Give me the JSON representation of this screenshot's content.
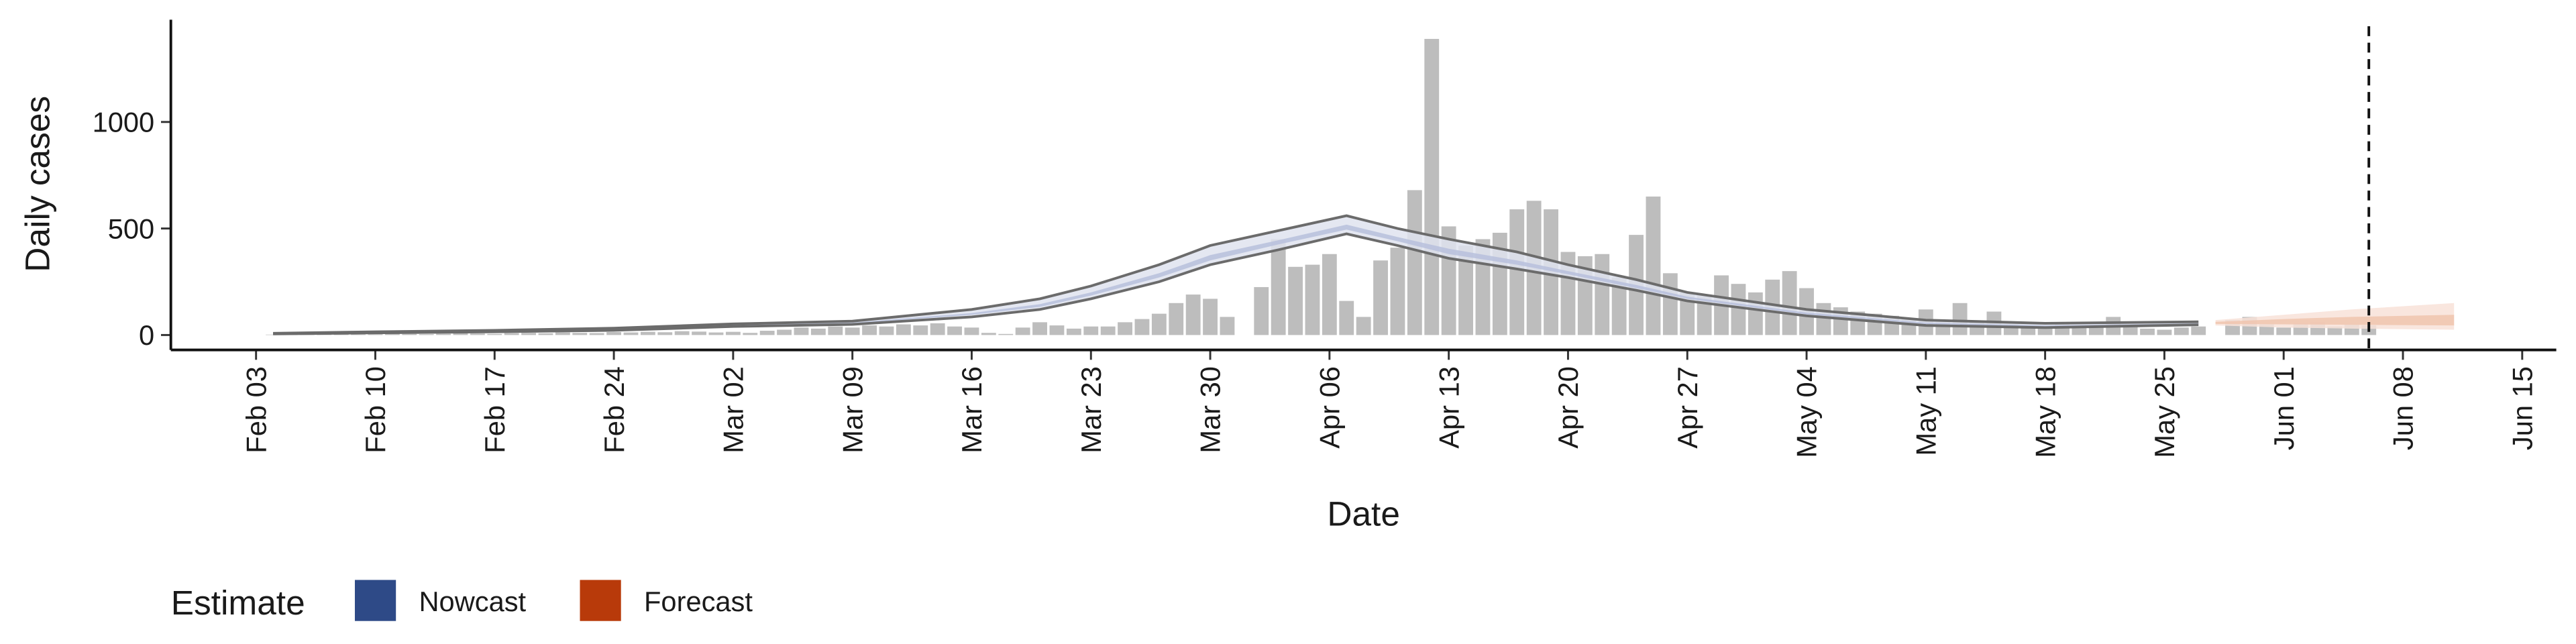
{
  "chart_data": {
    "type": "bar",
    "x_label": "Date",
    "y_label": "Daily cases",
    "legend_title": "Estimate",
    "xlim": [
      "Jan 29",
      "Jun 17"
    ],
    "xticks": [
      "Feb 03",
      "Feb 10",
      "Feb 17",
      "Feb 24",
      "Mar 02",
      "Mar 09",
      "Mar 16",
      "Mar 23",
      "Mar 30",
      "Apr 06",
      "Apr 13",
      "Apr 20",
      "Apr 27",
      "May 04",
      "May 11",
      "May 18",
      "May 25",
      "Jun 01",
      "Jun 08",
      "Jun 15"
    ],
    "ylim": [
      -70,
      1480
    ],
    "yticks": [
      0,
      500,
      1000
    ],
    "vline": "Jun 06",
    "bars": {
      "color": "#bdbdbd",
      "x": [
        "Feb 04",
        "Feb 05",
        "Feb 06",
        "Feb 07",
        "Feb 08",
        "Feb 09",
        "Feb 10",
        "Feb 11",
        "Feb 12",
        "Feb 13",
        "Feb 14",
        "Feb 15",
        "Feb 16",
        "Feb 17",
        "Feb 18",
        "Feb 19",
        "Feb 20",
        "Feb 21",
        "Feb 22",
        "Feb 23",
        "Feb 24",
        "Feb 25",
        "Feb 26",
        "Feb 27",
        "Feb 28",
        "Feb 29",
        "Mar 01",
        "Mar 02",
        "Mar 03",
        "Mar 04",
        "Mar 05",
        "Mar 06",
        "Mar 07",
        "Mar 08",
        "Mar 09",
        "Mar 10",
        "Mar 11",
        "Mar 12",
        "Mar 13",
        "Mar 14",
        "Mar 15",
        "Mar 16",
        "Mar 17",
        "Mar 18",
        "Mar 19",
        "Mar 20",
        "Mar 21",
        "Mar 22",
        "Mar 23",
        "Mar 24",
        "Mar 25",
        "Mar 26",
        "Mar 27",
        "Mar 28",
        "Mar 29",
        "Mar 30",
        "Mar 31",
        "Apr 01",
        "Apr 02",
        "Apr 03",
        "Apr 04",
        "Apr 05",
        "Apr 06",
        "Apr 07",
        "Apr 08",
        "Apr 09",
        "Apr 10",
        "Apr 11",
        "Apr 12",
        "Apr 13",
        "Apr 14",
        "Apr 15",
        "Apr 16",
        "Apr 17",
        "Apr 18",
        "Apr 19",
        "Apr 20",
        "Apr 21",
        "Apr 22",
        "Apr 23",
        "Apr 24",
        "Apr 25",
        "Apr 26",
        "Apr 27",
        "Apr 28",
        "Apr 29",
        "Apr 30",
        "May 01",
        "May 02",
        "May 03",
        "May 04",
        "May 05",
        "May 06",
        "May 07",
        "May 08",
        "May 09",
        "May 10",
        "May 11",
        "May 12",
        "May 13",
        "May 14",
        "May 15",
        "May 16",
        "May 17",
        "May 18",
        "May 19",
        "May 20",
        "May 21",
        "May 22",
        "May 23",
        "May 24",
        "May 25",
        "May 26",
        "May 27",
        "May 28",
        "May 29",
        "May 30",
        "May 31",
        "Jun 01",
        "Jun 02",
        "Jun 03",
        "Jun 04",
        "Jun 05",
        "Jun 06"
      ],
      "values": [
        2,
        3,
        2,
        4,
        5,
        3,
        4,
        6,
        5,
        4,
        6,
        8,
        7,
        5,
        9,
        10,
        8,
        12,
        10,
        9,
        14,
        12,
        15,
        13,
        18,
        16,
        12,
        15,
        10,
        20,
        25,
        35,
        30,
        40,
        35,
        45,
        40,
        50,
        45,
        55,
        40,
        35,
        10,
        5,
        35,
        60,
        45,
        30,
        40,
        40,
        60,
        75,
        100,
        150,
        190,
        170,
        85,
        0,
        225,
        450,
        320,
        330,
        380,
        160,
        85,
        350,
        410,
        680,
        1390,
        510,
        420,
        450,
        480,
        590,
        630,
        590,
        390,
        370,
        380,
        270,
        470,
        650,
        290,
        200,
        190,
        280,
        240,
        200,
        260,
        300,
        220,
        150,
        130,
        110,
        100,
        90,
        80,
        120,
        60,
        150,
        60,
        110,
        50,
        40,
        40,
        50,
        40,
        40,
        85,
        40,
        30,
        25,
        35,
        40,
        0,
        70,
        85,
        50,
        35,
        55,
        60,
        40,
        50,
        45
      ]
    },
    "series": [
      {
        "name": "Nowcast",
        "color": "#2e4a87",
        "x": [
          "Feb 04",
          "Feb 10",
          "Feb 17",
          "Feb 24",
          "Mar 02",
          "Mar 09",
          "Mar 16",
          "Mar 20",
          "Mar 23",
          "Mar 27",
          "Mar 30",
          "Apr 03",
          "Apr 07",
          "Apr 10",
          "Apr 13",
          "Apr 17",
          "Apr 20",
          "Apr 24",
          "Apr 27",
          "May 04",
          "May 11",
          "May 18",
          "May 27"
        ],
        "upper": [
          8,
          15,
          22,
          32,
          52,
          65,
          120,
          170,
          230,
          330,
          420,
          490,
          560,
          500,
          450,
          390,
          330,
          260,
          200,
          120,
          70,
          55,
          62
        ],
        "lower": [
          5,
          10,
          15,
          22,
          40,
          50,
          85,
          120,
          170,
          250,
          330,
          400,
          475,
          420,
          360,
          310,
          270,
          210,
          160,
          90,
          45,
          35,
          48
        ],
        "inner_upper": [
          7,
          13,
          19,
          28,
          47,
          58,
          103,
          145,
          200,
          290,
          375,
          445,
          518,
          460,
          405,
          350,
          300,
          235,
          180,
          105,
          58,
          45,
          55
        ],
        "inner_lower": [
          6,
          12,
          17,
          25,
          44,
          54,
          95,
          132,
          185,
          270,
          350,
          425,
          495,
          440,
          380,
          330,
          285,
          220,
          170,
          97,
          52,
          40,
          52
        ]
      },
      {
        "name": "Forecast",
        "color": "#b83a0a",
        "x": [
          "May 28",
          "Jun 01",
          "Jun 05",
          "Jun 11"
        ],
        "upper": [
          70,
          95,
          120,
          150
        ],
        "lower": [
          45,
          35,
          30,
          25
        ],
        "inner_upper": [
          62,
          75,
          85,
          95
        ],
        "inner_lower": [
          52,
          50,
          48,
          45
        ]
      }
    ]
  }
}
